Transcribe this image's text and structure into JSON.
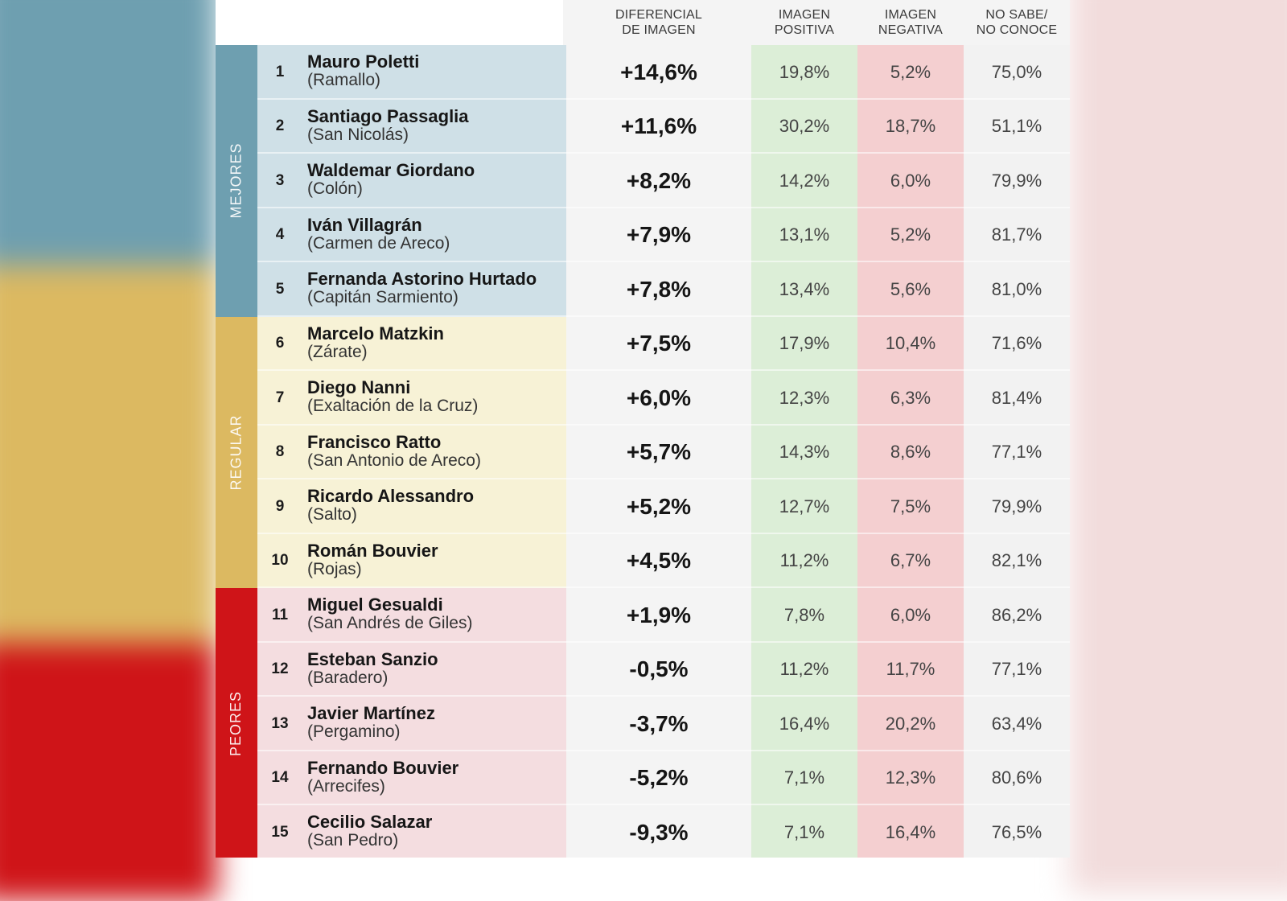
{
  "colors": {
    "mejores": "#6e9fb0",
    "mejores_bg": "#cfe0e7",
    "regular": "#dcb961",
    "regular_bg": "#f7f2d6",
    "peores": "#cf1418",
    "peores_bg": "#f4dde0",
    "positiva_bg": "#dceed7",
    "negativa_bg": "#f4cfd0"
  },
  "chart_data": {
    "type": "table",
    "columns": [
      "DIFERENCIAL\nDE IMAGEN",
      "IMAGEN\nPOSITIVA",
      "IMAGEN\nNEGATIVA",
      "NO SABE/\nNO CONOCE"
    ],
    "groups": [
      {
        "label": "MEJORES",
        "key": "mejores",
        "rows": [
          {
            "rank": "1",
            "name": "Mauro Poletti",
            "town": "(Ramallo)",
            "diff": "+14,6%",
            "pos": "19,8%",
            "neg": "5,2%",
            "ns": "75,0%"
          },
          {
            "rank": "2",
            "name": "Santiago Passaglia",
            "town": "(San Nicolás)",
            "diff": "+11,6%",
            "pos": "30,2%",
            "neg": "18,7%",
            "ns": "51,1%"
          },
          {
            "rank": "3",
            "name": "Waldemar Giordano",
            "town": "(Colón)",
            "diff": "+8,2%",
            "pos": "14,2%",
            "neg": "6,0%",
            "ns": "79,9%"
          },
          {
            "rank": "4",
            "name": "Iván Villagrán",
            "town": "(Carmen de Areco)",
            "diff": "+7,9%",
            "pos": "13,1%",
            "neg": "5,2%",
            "ns": "81,7%"
          },
          {
            "rank": "5",
            "name": "Fernanda Astorino Hurtado",
            "town": "(Capitán Sarmiento)",
            "diff": "+7,8%",
            "pos": "13,4%",
            "neg": "5,6%",
            "ns": "81,0%"
          }
        ]
      },
      {
        "label": "REGULAR",
        "key": "regular",
        "rows": [
          {
            "rank": "6",
            "name": "Marcelo Matzkin",
            "town": "(Zárate)",
            "diff": "+7,5%",
            "pos": "17,9%",
            "neg": "10,4%",
            "ns": "71,6%"
          },
          {
            "rank": "7",
            "name": "Diego Nanni",
            "town": "(Exaltación de la Cruz)",
            "diff": "+6,0%",
            "pos": "12,3%",
            "neg": "6,3%",
            "ns": "81,4%"
          },
          {
            "rank": "8",
            "name": "Francisco Ratto",
            "town": "(San Antonio de Areco)",
            "diff": "+5,7%",
            "pos": "14,3%",
            "neg": "8,6%",
            "ns": "77,1%"
          },
          {
            "rank": "9",
            "name": "Ricardo Alessandro",
            "town": "(Salto)",
            "diff": "+5,2%",
            "pos": "12,7%",
            "neg": "7,5%",
            "ns": "79,9%"
          },
          {
            "rank": "10",
            "name": "Román Bouvier",
            "town": "(Rojas)",
            "diff": "+4,5%",
            "pos": "11,2%",
            "neg": "6,7%",
            "ns": "82,1%"
          }
        ]
      },
      {
        "label": "PEORES",
        "key": "peores",
        "rows": [
          {
            "rank": "11",
            "name": "Miguel Gesualdi",
            "town": "(San Andrés de Giles)",
            "diff": "+1,9%",
            "pos": "7,8%",
            "neg": "6,0%",
            "ns": "86,2%"
          },
          {
            "rank": "12",
            "name": "Esteban Sanzio",
            "town": "(Baradero)",
            "diff": "-0,5%",
            "pos": "11,2%",
            "neg": "11,7%",
            "ns": "77,1%"
          },
          {
            "rank": "13",
            "name": "Javier Martínez",
            "town": "(Pergamino)",
            "diff": "-3,7%",
            "pos": "16,4%",
            "neg": "20,2%",
            "ns": "63,4%"
          },
          {
            "rank": "14",
            "name": "Fernando Bouvier",
            "town": "(Arrecifes)",
            "diff": "-5,2%",
            "pos": "7,1%",
            "neg": "12,3%",
            "ns": "80,6%"
          },
          {
            "rank": "15",
            "name": "Cecilio Salazar",
            "town": "(San Pedro)",
            "diff": "-9,3%",
            "pos": "7,1%",
            "neg": "16,4%",
            "ns": "76,5%"
          }
        ]
      }
    ]
  }
}
